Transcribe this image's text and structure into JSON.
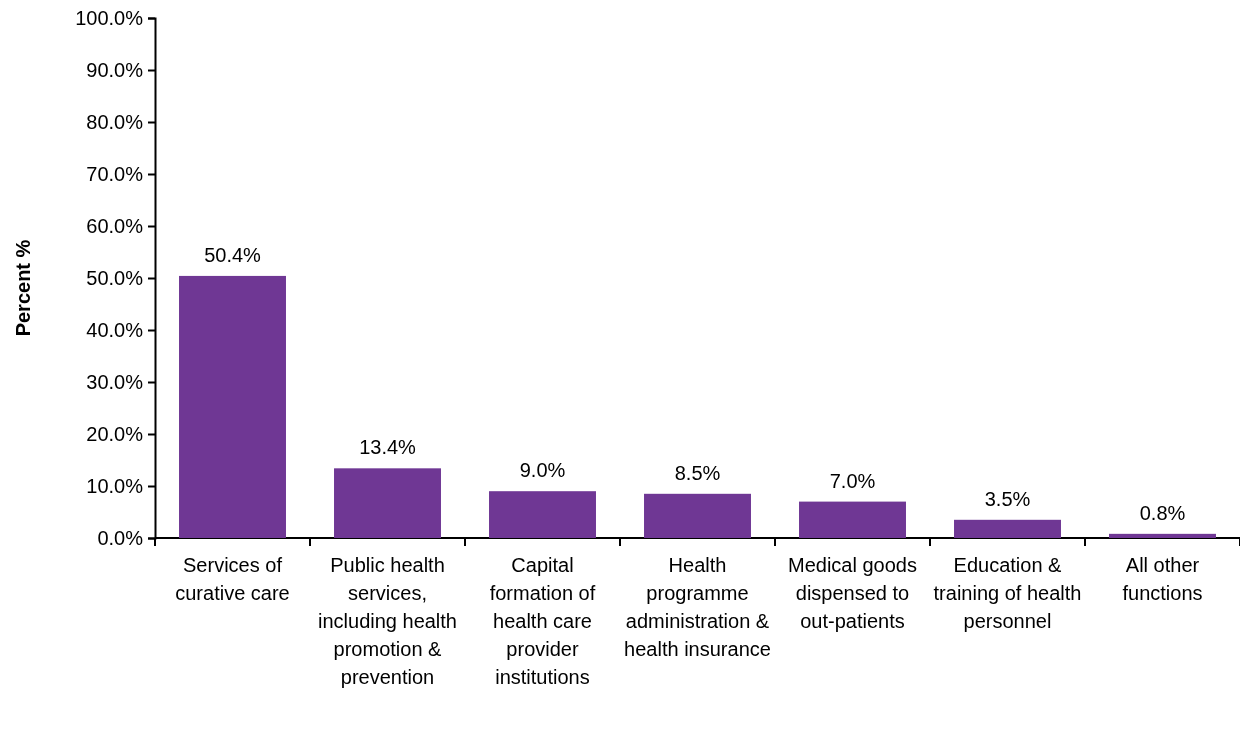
{
  "chart_data": {
    "type": "bar",
    "ylabel": "Percent %",
    "categories": [
      "Services of curative care",
      "Public health services, including health promotion & prevention",
      "Capital formation of health care provider institutions",
      "Health programme administration & health insurance",
      "Medical goods dispensed to out-patients",
      "Education & training of health personnel",
      "All other functions"
    ],
    "values": [
      50.4,
      13.4,
      9.0,
      8.5,
      7.0,
      3.5,
      0.8
    ],
    "value_labels": [
      "50.4%",
      "13.4%",
      "9.0%",
      "8.5%",
      "7.0%",
      "3.5%",
      "0.8%"
    ],
    "color": "#6f3794",
    "ylim": [
      0,
      100
    ],
    "yticks": [
      {
        "value": 0,
        "label": "0.0%"
      },
      {
        "value": 10,
        "label": "10.0%"
      },
      {
        "value": 20,
        "label": "20.0%"
      },
      {
        "value": 30,
        "label": "30.0%"
      },
      {
        "value": 40,
        "label": "40.0%"
      },
      {
        "value": 50,
        "label": "50.0%"
      },
      {
        "value": 60,
        "label": "60.0%"
      },
      {
        "value": 70,
        "label": "70.0%"
      },
      {
        "value": 80,
        "label": "80.0%"
      },
      {
        "value": 90,
        "label": "90.0%"
      },
      {
        "value": 100,
        "label": "100.0%"
      }
    ],
    "grid": false
  }
}
